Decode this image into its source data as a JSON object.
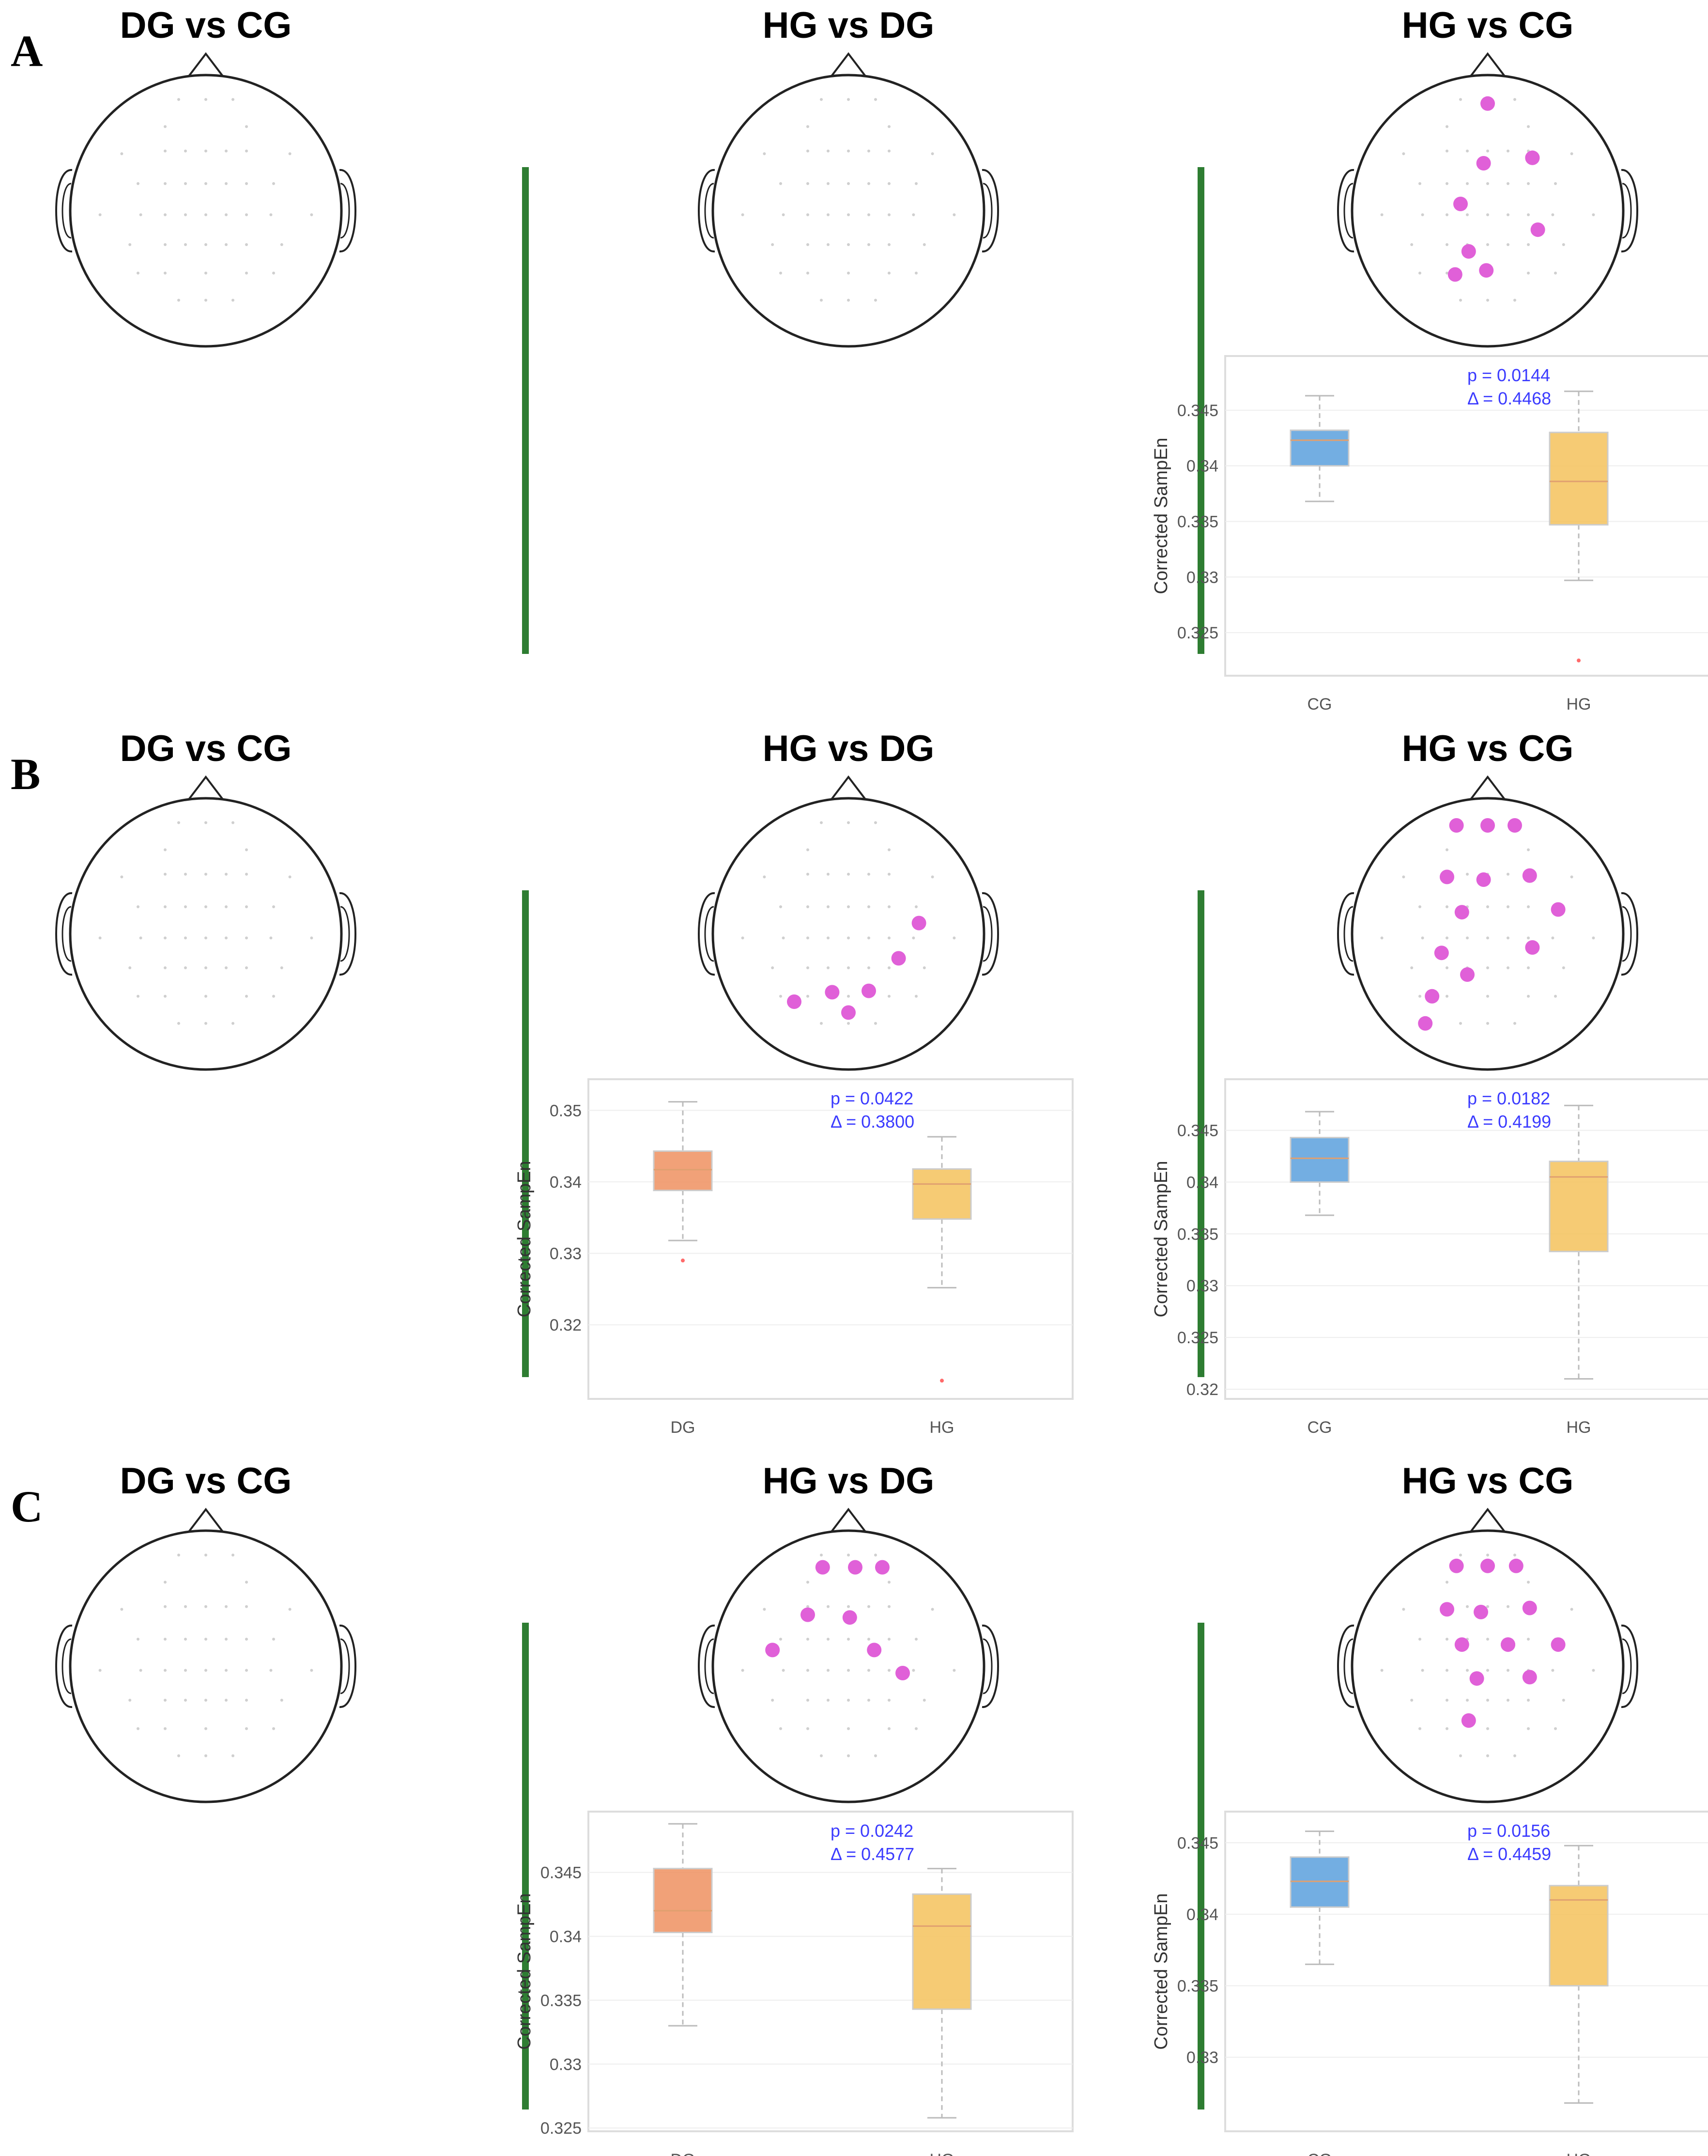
{
  "rows": [
    {
      "label": "A",
      "panels": [
        {
          "title": "DG vs CG",
          "electrodes": [],
          "separator": false,
          "box": null
        },
        {
          "title": "HG vs DG",
          "electrodes": [],
          "separator": true,
          "box": null
        },
        {
          "title": "HG vs CG",
          "separator": true,
          "electrodes": [
            "FPz",
            "AF4",
            "F1",
            "F4",
            "FC1",
            "C2",
            "C5",
            "C3",
            "CP1"
          ],
          "box": {
            "ylabel": "Corrected SampEn",
            "ymin": 0.322,
            "ymax": 0.349,
            "ticks": [
              0.325,
              0.33,
              0.335,
              0.34,
              0.345
            ],
            "tick_labels": [
              "0.325",
              "0.33",
              "0.335",
              "0.34",
              "0.345"
            ],
            "p_text": "p = 0.0144",
            "delta_text": "Δ = 0.4468",
            "groups": [
              {
                "name": "CG",
                "color": "#5aa0dd",
                "q1": 0.34,
                "median": 0.3423,
                "q3": 0.3432,
                "whisker_low": 0.3368,
                "whisker_high": 0.3463,
                "outliers": []
              },
              {
                "name": "HG",
                "color": "#f5c25c",
                "q1": 0.3347,
                "median": 0.3386,
                "q3": 0.343,
                "whisker_low": 0.3297,
                "whisker_high": 0.3467,
                "outliers": [
                  0.3225
                ]
              }
            ]
          }
        }
      ]
    },
    {
      "label": "B",
      "panels": [
        {
          "title": "DG vs CG",
          "electrodes": [],
          "separator": false,
          "box": null
        },
        {
          "title": "HG vs DG",
          "separator": true,
          "electrodes": [
            "T8",
            "C4",
            "CP3",
            "CP1",
            "CPz",
            "CP5"
          ],
          "box": {
            "ylabel": "Corrected SampEn",
            "ymin": 0.311,
            "ymax": 0.353,
            "ticks": [
              0.32,
              0.33,
              0.34,
              0.35
            ],
            "tick_labels": [
              "0.32",
              "0.33",
              "0.34",
              "0.35"
            ],
            "p_text": "p = 0.0422",
            "delta_text": "Δ = 0.3800",
            "groups": [
              {
                "name": "DG",
                "color": "#ee9060",
                "q1": 0.3388,
                "median": 0.3417,
                "q3": 0.3443,
                "whisker_low": 0.3318,
                "whisker_high": 0.3512,
                "outliers": [
                  0.329
                ]
              },
              {
                "name": "HG",
                "color": "#f5c25c",
                "q1": 0.3348,
                "median": 0.3397,
                "q3": 0.3418,
                "whisker_low": 0.3252,
                "whisker_high": 0.3463,
                "outliers": [
                  0.3122
                ]
              }
            ]
          }
        },
        {
          "title": "HG vs CG",
          "separator": true,
          "electrodes": [
            "FP1",
            "FPz",
            "FP2",
            "F3",
            "Fz",
            "F4",
            "FC3",
            "FC4",
            "T8",
            "C3",
            "C1",
            "CP3",
            "P5"
          ],
          "box": {
            "ylabel": "Corrected SampEn",
            "ymin": 0.32,
            "ymax": 0.349,
            "ticks": [
              0.32,
              0.325,
              0.33,
              0.335,
              0.34,
              0.345
            ],
            "tick_labels": [
              "0.32",
              "0.325",
              "0.33",
              "0.335",
              "0.34",
              "0.345"
            ],
            "p_text": "p = 0.0182",
            "delta_text": "Δ = 0.4199",
            "groups": [
              {
                "name": "CG",
                "color": "#5aa0dd",
                "q1": 0.34,
                "median": 0.3423,
                "q3": 0.3443,
                "whisker_low": 0.3368,
                "whisker_high": 0.3468,
                "outliers": []
              },
              {
                "name": "HG",
                "color": "#f5c25c",
                "q1": 0.3333,
                "median": 0.3405,
                "q3": 0.342,
                "whisker_low": 0.321,
                "whisker_high": 0.3474,
                "outliers": []
              }
            ]
          }
        }
      ]
    },
    {
      "label": "C",
      "panels": [
        {
          "title": "DG vs CG",
          "electrodes": [],
          "separator": false,
          "box": null
        },
        {
          "title": "HG vs DG",
          "separator": true,
          "electrodes": [
            "FP1",
            "FPz",
            "FP2",
            "F3",
            "Fz",
            "FC5",
            "FC2",
            "C4"
          ],
          "box": {
            "ylabel": "Corrected SampEn",
            "ymin": 0.3255,
            "ymax": 0.349,
            "ticks": [
              0.325,
              0.33,
              0.335,
              0.34,
              0.345
            ],
            "tick_labels": [
              "0.325",
              "0.33",
              "0.335",
              "0.34",
              "0.345"
            ],
            "p_text": "p = 0.0242",
            "delta_text": "Δ = 0.4577",
            "groups": [
              {
                "name": "DG",
                "color": "#ee9060",
                "q1": 0.3403,
                "median": 0.342,
                "q3": 0.3453,
                "whisker_low": 0.333,
                "whisker_high": 0.3488,
                "outliers": []
              },
              {
                "name": "HG",
                "color": "#f5c25c",
                "q1": 0.3343,
                "median": 0.3408,
                "q3": 0.3433,
                "whisker_low": 0.3258,
                "whisker_high": 0.3453,
                "outliers": []
              }
            ]
          }
        },
        {
          "title": "HG vs CG",
          "separator": true,
          "electrodes": [
            "FP1",
            "FPz",
            "FP2",
            "F3",
            "Fz",
            "F4",
            "FC3",
            "FC1",
            "FC2",
            "FC4",
            "C1",
            "C3b",
            "CP3"
          ],
          "box": {
            "ylabel": "Corrected SampEn",
            "ymin": 0.3255,
            "ymax": 0.3465,
            "ticks": [
              0.33,
              0.335,
              0.34,
              0.345
            ],
            "tick_labels": [
              "0.33",
              "0.335",
              "0.34",
              "0.345"
            ],
            "p_text": "p = 0.0156",
            "delta_text": "Δ = 0.4459",
            "groups": [
              {
                "name": "CG",
                "color": "#5aa0dd",
                "q1": 0.3405,
                "median": 0.3423,
                "q3": 0.344,
                "whisker_low": 0.3365,
                "whisker_high": 0.3458,
                "outliers": []
              },
              {
                "name": "HG",
                "color": "#f5c25c",
                "q1": 0.335,
                "median": 0.341,
                "q3": 0.342,
                "whisker_low": 0.3268,
                "whisker_high": 0.3448,
                "outliers": []
              }
            ]
          }
        }
      ]
    }
  ],
  "colors": {
    "highlight": "#e060d8",
    "separator": "#2e7d32",
    "head": "#222222",
    "grid_dot": "#cfcfcf"
  }
}
